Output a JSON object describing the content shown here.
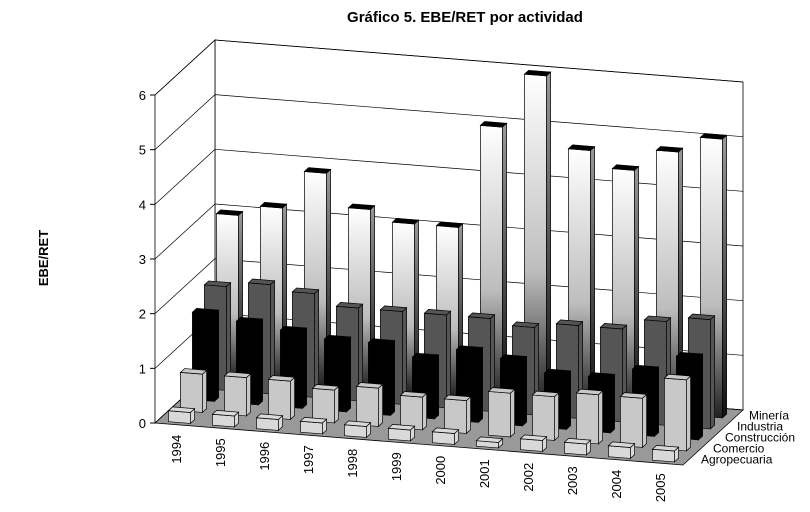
{
  "chart_data": {
    "type": "bar3d",
    "title": "Gráfico 5. EBE/RET por actividad",
    "y_label": "EBE/RET",
    "categories": [
      "1994",
      "1995",
      "1996",
      "1997",
      "1998",
      "1999",
      "2000",
      "2001",
      "2002",
      "2003",
      "2004",
      "2005"
    ],
    "series": [
      {
        "name": "Agropecuaria",
        "color": "#d9d9d9",
        "values": [
          0.2,
          0.2,
          0.2,
          0.2,
          0.2,
          0.2,
          0.2,
          0.1,
          0.2,
          0.2,
          0.2,
          0.2
        ]
      },
      {
        "name": "Comercio",
        "color": "#c8c8c8",
        "values": [
          0.7,
          0.7,
          0.7,
          0.6,
          0.7,
          0.6,
          0.6,
          0.8,
          0.8,
          0.9,
          0.9,
          1.3
        ]
      },
      {
        "name": "Construcción",
        "color": "#000000",
        "values": [
          1.6,
          1.5,
          1.4,
          1.3,
          1.3,
          1.1,
          1.3,
          1.2,
          1.0,
          1.0,
          1.2,
          1.5
        ]
      },
      {
        "name": "Industria",
        "color": "#555555",
        "values": [
          1.9,
          2.0,
          1.9,
          1.7,
          1.7,
          1.7,
          1.7,
          1.6,
          1.7,
          1.7,
          1.9,
          2.0
        ]
      },
      {
        "name": "Minería",
        "color": "#ffffff",
        "values": [
          3.0,
          3.2,
          3.9,
          3.3,
          3.1,
          3.1,
          5.0,
          6.0,
          4.7,
          4.4,
          4.8,
          5.1
        ]
      }
    ],
    "ylim": [
      0,
      6
    ],
    "yticks": [
      0,
      1,
      2,
      3,
      4,
      5,
      6
    ],
    "grid": true
  }
}
